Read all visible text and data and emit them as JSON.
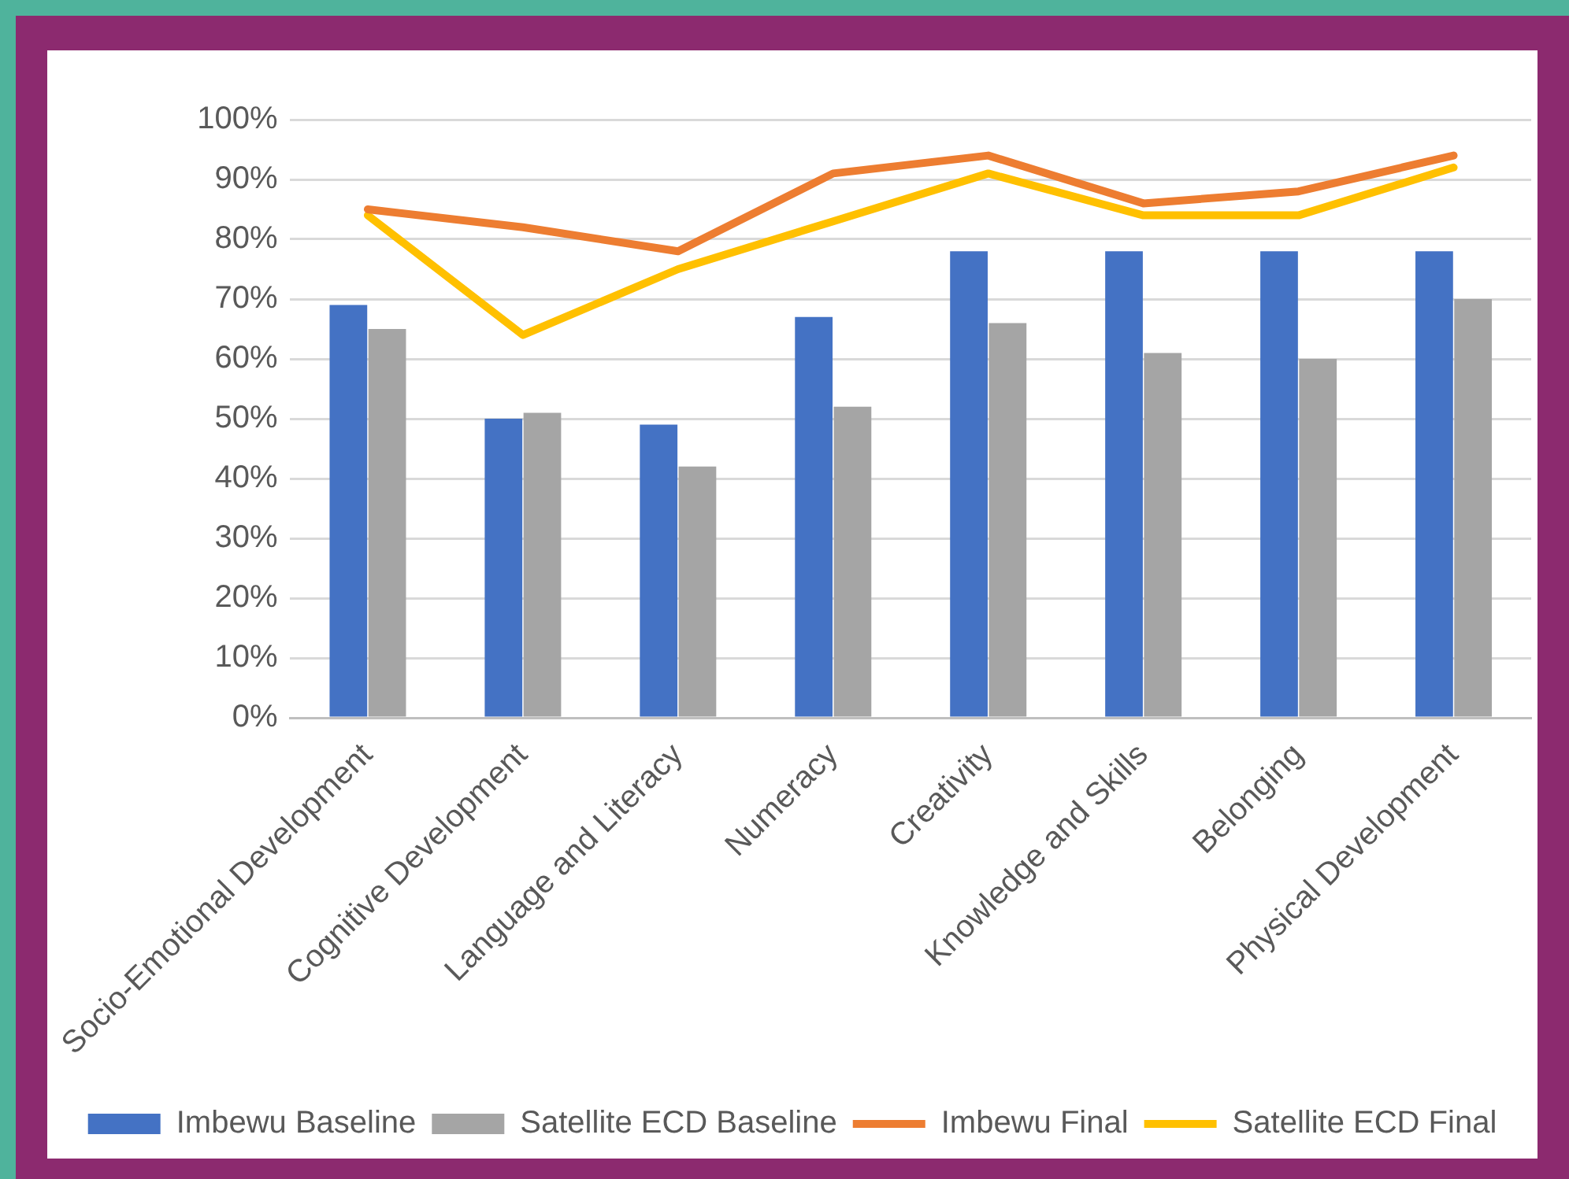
{
  "chart_data": {
    "type": "bar",
    "categories": [
      "Socio-Emotional Development",
      "Cognitive Development",
      "Language and Literacy",
      "Numeracy",
      "Creativity",
      "Knowledge and Skills",
      "Belonging",
      "Physical Development"
    ],
    "series": [
      {
        "name": "Imbewu Baseline",
        "color": "#4472c4",
        "values": [
          69,
          50,
          49,
          67,
          78,
          78,
          78,
          78
        ]
      },
      {
        "name": "Satellite ECD Baseline",
        "color": "#a5a5a5",
        "values": [
          65,
          51,
          42,
          52,
          66,
          61,
          60,
          70
        ]
      },
      {
        "name": "Imbewu Final",
        "type": "line",
        "color": "#ed7d31",
        "values": [
          85,
          82,
          78,
          91,
          94,
          86,
          88,
          94
        ]
      },
      {
        "name": "Satellite ECD Final",
        "type": "line",
        "color": "#ffc000",
        "values": [
          84,
          64,
          75,
          83,
          91,
          84,
          84,
          92
        ]
      }
    ],
    "ylim": [
      0,
      100
    ],
    "yticks": [
      {
        "value": 0,
        "label": "0%"
      },
      {
        "value": 10,
        "label": "10%"
      },
      {
        "value": 20,
        "label": "20%"
      },
      {
        "value": 30,
        "label": "30%"
      },
      {
        "value": 40,
        "label": "40%"
      },
      {
        "value": 50,
        "label": "50%"
      },
      {
        "value": 60,
        "label": "60%"
      },
      {
        "value": 70,
        "label": "70%"
      },
      {
        "value": 80,
        "label": "80%"
      },
      {
        "value": 90,
        "label": "90%"
      },
      {
        "value": 100,
        "label": "100%"
      }
    ],
    "grid": "y",
    "legend": "bottom",
    "line_style": "solid"
  }
}
